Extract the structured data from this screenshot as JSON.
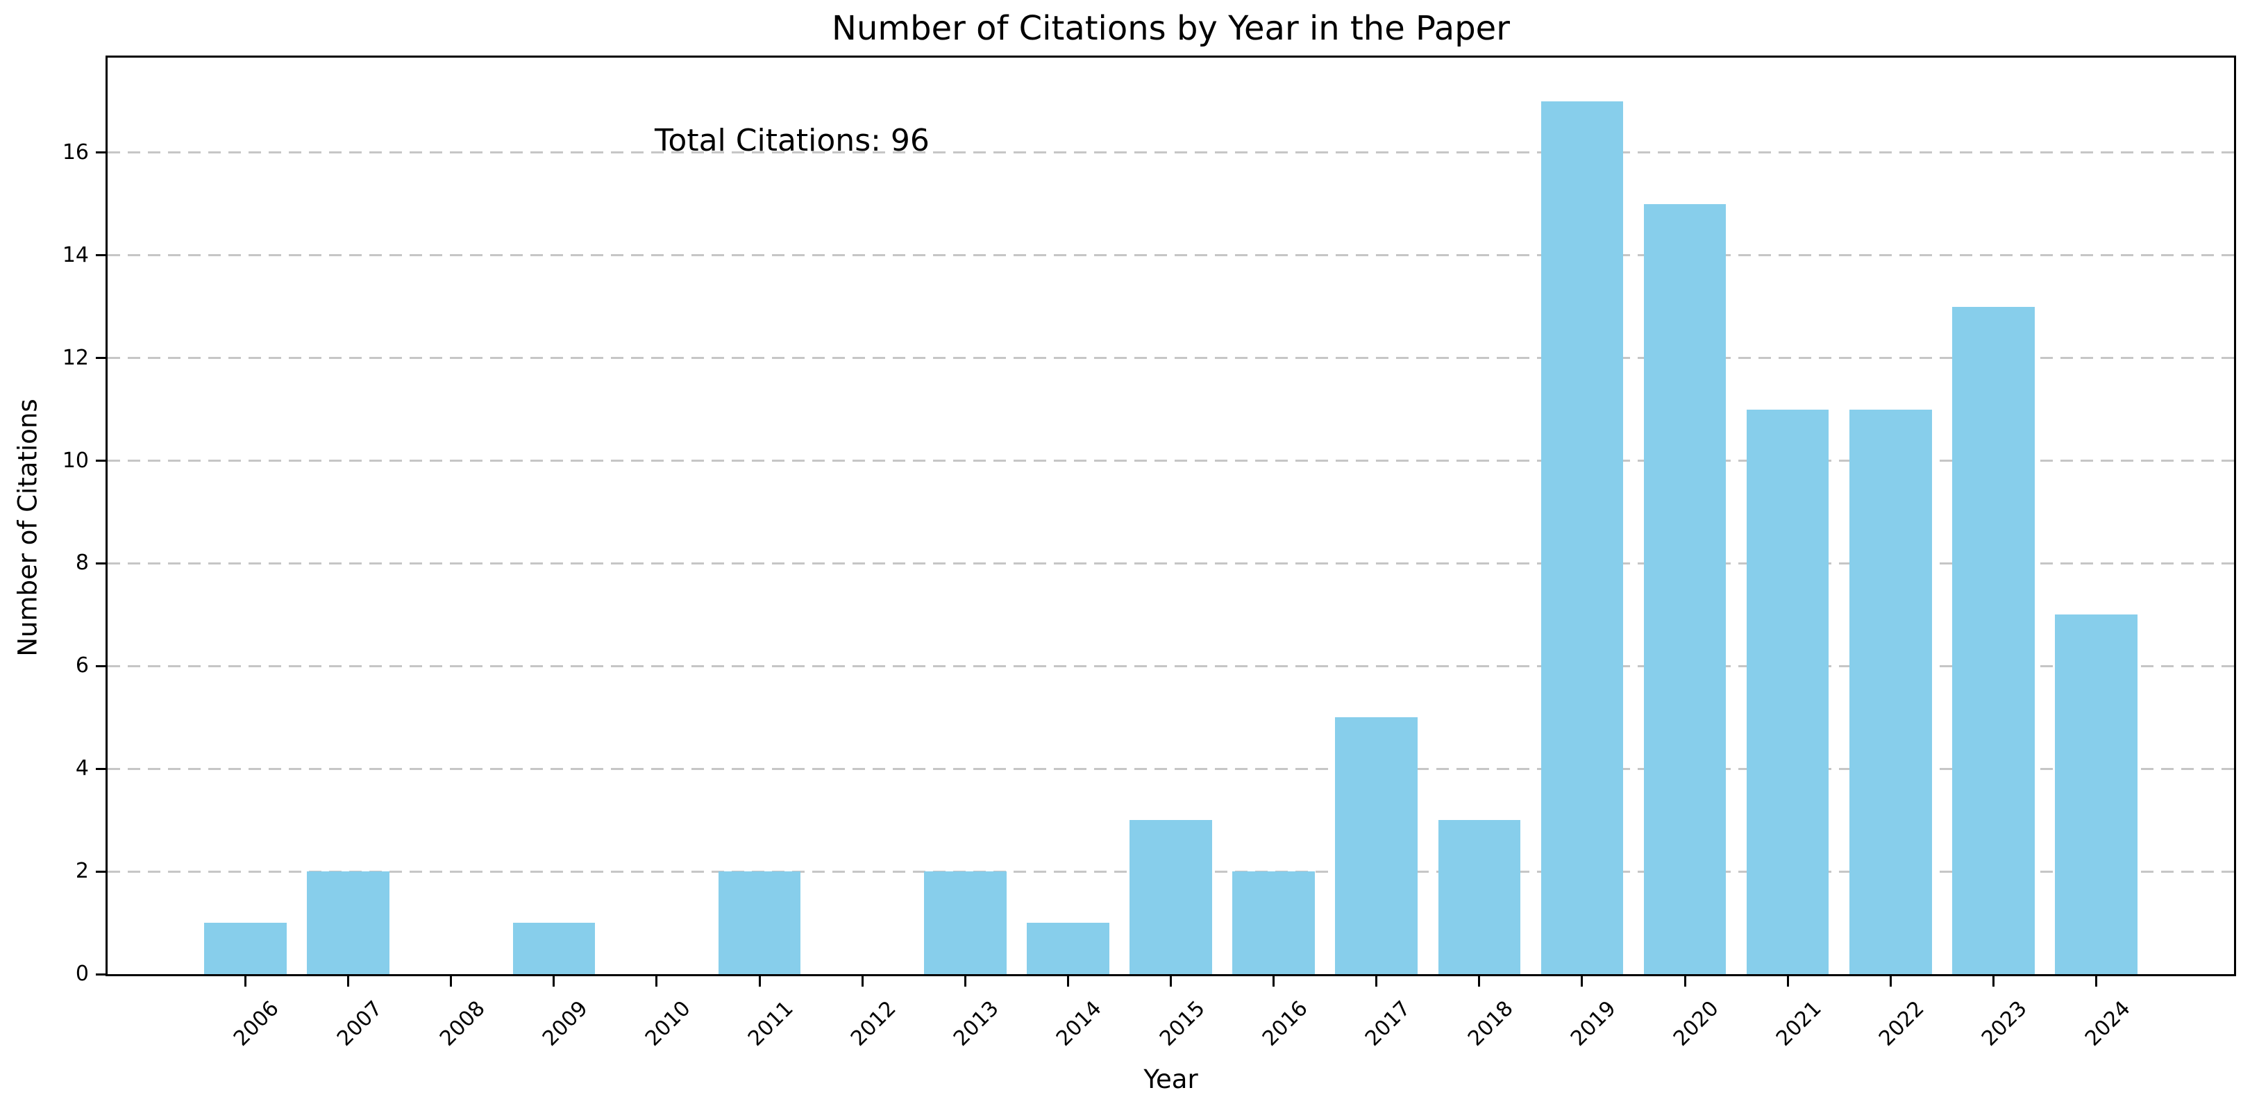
{
  "figure": {
    "title": "Number of Citations by Year in the Paper",
    "annotation": "Total Citations: 96"
  },
  "chart_data": {
    "type": "bar",
    "title": "Number of Citations by Year in the Paper",
    "xlabel": "Year",
    "ylabel": "Number of Citations",
    "annotation": "Total Citations: 96",
    "total_citations": 96,
    "categories": [
      "2006",
      "2007",
      "2008",
      "2009",
      "2010",
      "2011",
      "2012",
      "2013",
      "2014",
      "2015",
      "2016",
      "2017",
      "2018",
      "2019",
      "2020",
      "2021",
      "2022",
      "2023",
      "2024"
    ],
    "values": [
      1,
      2,
      0,
      1,
      0,
      2,
      0,
      2,
      1,
      3,
      2,
      5,
      3,
      17,
      15,
      11,
      11,
      13,
      7
    ],
    "yticks": [
      0,
      2,
      4,
      6,
      8,
      10,
      12,
      14,
      16
    ],
    "ylim": [
      0,
      17.85
    ],
    "xlim_years": [
      2004.66,
      2025.34
    ],
    "bar_width_units": 0.8,
    "x_tick_rotation_deg": 45,
    "legend": "none",
    "colors": {
      "bar_fill": "#87CEEB",
      "grid": "#c6c6c6",
      "spine": "#000000",
      "text": "#000000",
      "background": "#ffffff"
    },
    "grid": {
      "axis": "y",
      "style": "dashed"
    }
  }
}
